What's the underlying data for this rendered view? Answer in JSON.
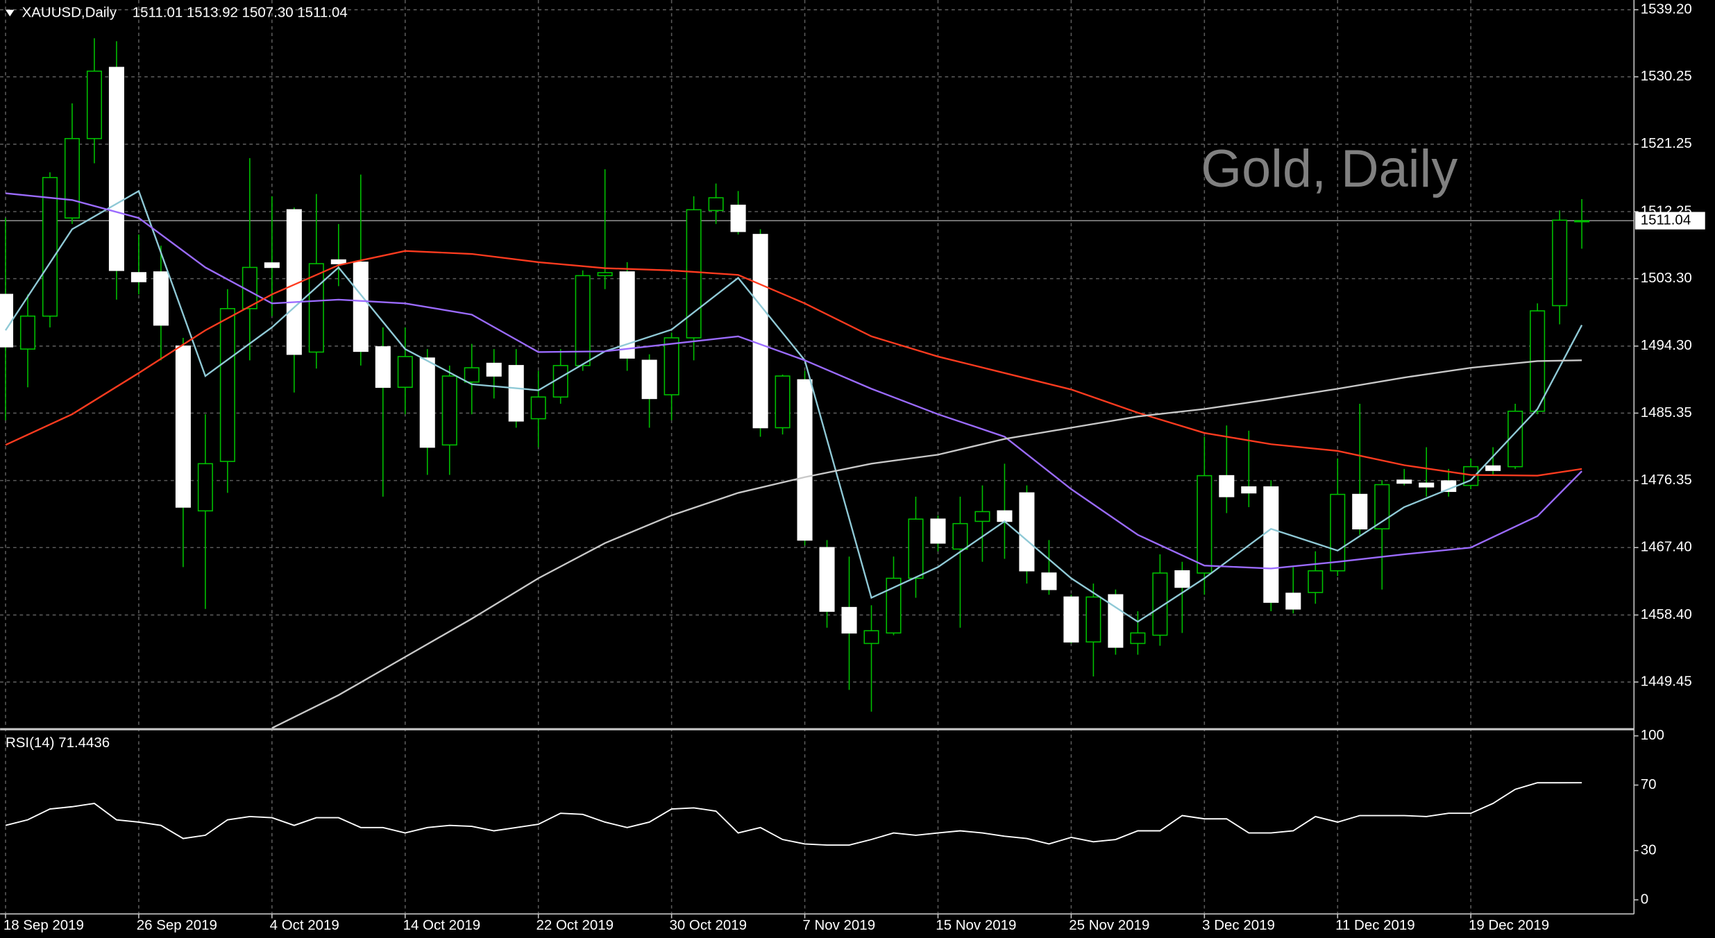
{
  "chart_data": {
    "type": "candlestick",
    "title": "XAUUSD,Daily",
    "ohlc_text": "1511.01 1513.92 1507.30 1511.04",
    "watermark": "Gold, Daily",
    "up_color": "#00c000",
    "down_color": "#ffffff",
    "wick_color": "#00c000",
    "grid": true,
    "ylim": [
      1443.3,
      1540.5
    ],
    "yticks": [
      {
        "value": 1539.2,
        "label": "1539.20"
      },
      {
        "value": 1530.25,
        "label": "1530.25"
      },
      {
        "value": 1521.25,
        "label": "1521.25"
      },
      {
        "value": 1512.25,
        "label": "1512.25"
      },
      {
        "value": 1503.3,
        "label": "1503.30"
      },
      {
        "value": 1494.3,
        "label": "1494.30"
      },
      {
        "value": 1485.35,
        "label": "1485.35"
      },
      {
        "value": 1476.35,
        "label": "1476.35"
      },
      {
        "value": 1467.4,
        "label": "1467.40"
      },
      {
        "value": 1458.4,
        "label": "1458.40"
      },
      {
        "value": 1449.45,
        "label": "1449.45"
      }
    ],
    "xticks": [
      {
        "value": 0,
        "label": "18 Sep 2019"
      },
      {
        "value": 6,
        "label": "26 Sep 2019"
      },
      {
        "value": 12,
        "label": "4 Oct 2019"
      },
      {
        "value": 18,
        "label": "14 Oct 2019"
      },
      {
        "value": 24,
        "label": "22 Oct 2019"
      },
      {
        "value": 30,
        "label": "30 Oct 2019"
      },
      {
        "value": 36,
        "label": "7 Nov 2019"
      },
      {
        "value": 42,
        "label": "15 Nov 2019"
      },
      {
        "value": 48,
        "label": "25 Nov 2019"
      },
      {
        "value": 54,
        "label": "3 Dec 2019"
      },
      {
        "value": 60,
        "label": "11 Dec 2019"
      },
      {
        "value": 66,
        "label": "19 Dec 2019"
      }
    ],
    "last_price": {
      "value": 1511.04,
      "label": "1511.04"
    },
    "ohlc": [
      [
        1501.2,
        1511.4,
        1484.4,
        1494.2
      ],
      [
        1493.9,
        1501.2,
        1488.8,
        1498.3
      ],
      [
        1498.3,
        1517.5,
        1496.8,
        1516.8
      ],
      [
        1511.4,
        1526.7,
        1510.6,
        1522.0
      ],
      [
        1522.0,
        1535.4,
        1518.7,
        1531.0
      ],
      [
        1531.5,
        1535.0,
        1500.5,
        1504.4
      ],
      [
        1504.1,
        1509.2,
        1501.2,
        1502.9
      ],
      [
        1504.2,
        1507.7,
        1492.4,
        1497.1
      ],
      [
        1494.3,
        1495.4,
        1464.8,
        1472.8
      ],
      [
        1472.3,
        1485.2,
        1459.2,
        1478.6
      ],
      [
        1478.9,
        1501.9,
        1474.7,
        1499.3
      ],
      [
        1499.3,
        1519.4,
        1492.4,
        1504.8
      ],
      [
        1505.4,
        1514.3,
        1498.3,
        1504.8
      ],
      [
        1512.5,
        1512.8,
        1488.1,
        1493.2
      ],
      [
        1493.5,
        1514.6,
        1491.3,
        1505.3
      ],
      [
        1505.8,
        1510.6,
        1502.3,
        1505.3
      ],
      [
        1505.5,
        1517.2,
        1491.7,
        1493.6
      ],
      [
        1494.2,
        1496.8,
        1474.2,
        1488.8
      ],
      [
        1488.8,
        1496.8,
        1485.2,
        1492.9
      ],
      [
        1492.7,
        1493.9,
        1477.1,
        1480.8
      ],
      [
        1481.1,
        1491.7,
        1477.1,
        1490.3
      ],
      [
        1489.5,
        1494.6,
        1485.2,
        1491.4
      ],
      [
        1492.0,
        1493.9,
        1487.3,
        1490.3
      ],
      [
        1491.7,
        1493.9,
        1483.4,
        1484.3
      ],
      [
        1484.6,
        1491.0,
        1480.8,
        1487.5
      ],
      [
        1487.5,
        1493.9,
        1486.6,
        1491.7
      ],
      [
        1491.7,
        1504.4,
        1491.0,
        1503.7
      ],
      [
        1503.7,
        1517.9,
        1501.9,
        1504.1
      ],
      [
        1504.2,
        1505.5,
        1491.0,
        1492.7
      ],
      [
        1492.4,
        1493.2,
        1483.4,
        1487.3
      ],
      [
        1487.8,
        1496.1,
        1484.4,
        1495.4
      ],
      [
        1495.4,
        1514.3,
        1492.4,
        1512.5
      ],
      [
        1512.4,
        1516.0,
        1510.6,
        1514.1
      ],
      [
        1513.1,
        1515.0,
        1509.2,
        1509.6
      ],
      [
        1509.2,
        1509.9,
        1482.2,
        1483.4
      ],
      [
        1483.4,
        1490.5,
        1482.5,
        1490.3
      ],
      [
        1489.8,
        1491.0,
        1467.7,
        1468.4
      ],
      [
        1467.4,
        1468.4,
        1456.7,
        1458.9
      ],
      [
        1459.4,
        1466.2,
        1448.4,
        1456.0
      ],
      [
        1454.6,
        1459.7,
        1445.5,
        1456.3
      ],
      [
        1456.0,
        1466.2,
        1455.7,
        1463.3
      ],
      [
        1463.3,
        1474.2,
        1460.7,
        1471.2
      ],
      [
        1471.2,
        1471.7,
        1466.9,
        1468.0
      ],
      [
        1467.2,
        1474.2,
        1456.7,
        1470.6
      ],
      [
        1470.9,
        1475.7,
        1465.5,
        1472.2
      ],
      [
        1472.3,
        1478.6,
        1465.9,
        1470.9
      ],
      [
        1474.7,
        1475.7,
        1462.6,
        1464.3
      ],
      [
        1464.0,
        1468.4,
        1461.1,
        1461.8
      ],
      [
        1460.8,
        1461.1,
        1454.6,
        1454.8
      ],
      [
        1454.8,
        1462.6,
        1450.2,
        1460.8
      ],
      [
        1461.1,
        1461.8,
        1453.1,
        1454.1
      ],
      [
        1454.6,
        1458.9,
        1453.1,
        1456.0
      ],
      [
        1455.7,
        1466.5,
        1454.3,
        1464.0
      ],
      [
        1464.3,
        1465.5,
        1456.0,
        1462.1
      ],
      [
        1464.0,
        1482.2,
        1461.1,
        1477.0
      ],
      [
        1477.0,
        1483.7,
        1472.0,
        1474.2
      ],
      [
        1475.5,
        1483.0,
        1472.8,
        1474.7
      ],
      [
        1475.5,
        1476.4,
        1458.9,
        1460.1
      ],
      [
        1461.3,
        1464.8,
        1458.6,
        1459.2
      ],
      [
        1461.4,
        1466.9,
        1459.9,
        1464.3
      ],
      [
        1464.3,
        1479.3,
        1463.6,
        1474.5
      ],
      [
        1474.5,
        1486.6,
        1469.1,
        1469.9
      ],
      [
        1469.9,
        1476.4,
        1461.8,
        1475.8
      ],
      [
        1476.4,
        1477.9,
        1475.7,
        1476.0
      ],
      [
        1476.0,
        1480.8,
        1474.2,
        1475.5
      ],
      [
        1476.3,
        1477.9,
        1474.2,
        1474.9
      ],
      [
        1475.7,
        1479.3,
        1475.2,
        1478.2
      ],
      [
        1478.3,
        1480.8,
        1477.1,
        1477.7
      ],
      [
        1478.2,
        1486.6,
        1477.9,
        1485.6
      ],
      [
        1485.6,
        1500.0,
        1485.2,
        1499.0
      ],
      [
        1499.7,
        1512.4,
        1497.2,
        1511.1
      ],
      [
        1511.01,
        1513.92,
        1507.3,
        1511.04
      ]
    ],
    "series": [
      {
        "color": "#8fc9d6",
        "x": [
          0,
          3,
          6,
          9,
          12,
          15,
          18,
          21,
          24,
          27,
          30,
          33,
          36,
          39,
          42,
          45,
          48,
          51,
          54,
          57,
          60,
          63,
          66,
          69,
          71
        ],
        "values": [
          1496.4,
          1509.9,
          1515.0,
          1490.3,
          1496.8,
          1504.8,
          1493.9,
          1489.2,
          1488.4,
          1493.6,
          1496.5,
          1503.4,
          1492.4,
          1460.7,
          1464.8,
          1470.9,
          1463.3,
          1457.5,
          1463.3,
          1469.9,
          1467.0,
          1472.8,
          1476.4,
          1485.9,
          1497.1
        ]
      },
      {
        "color": "#9b6bff",
        "x": [
          0,
          3,
          6,
          9,
          12,
          15,
          18,
          21,
          24,
          27,
          30,
          33,
          36,
          39,
          42,
          45,
          48,
          51,
          54,
          57,
          60,
          63,
          66,
          69,
          71
        ],
        "values": [
          1514.7,
          1513.8,
          1511.4,
          1504.8,
          1500.0,
          1500.5,
          1500.0,
          1498.5,
          1493.5,
          1493.6,
          1494.6,
          1495.6,
          1492.4,
          1488.6,
          1485.2,
          1482.2,
          1475.2,
          1469.1,
          1465.0,
          1464.6,
          1465.5,
          1466.5,
          1467.4,
          1471.6,
          1477.6
        ]
      },
      {
        "color": "#ff3b1f",
        "x": [
          0,
          3,
          6,
          9,
          12,
          15,
          18,
          21,
          24,
          27,
          30,
          33,
          36,
          39,
          42,
          45,
          48,
          51,
          54,
          57,
          60,
          63,
          66,
          69,
          71
        ],
        "values": [
          1481.1,
          1485.2,
          1490.7,
          1496.4,
          1501.2,
          1505.1,
          1507.0,
          1506.6,
          1505.5,
          1504.7,
          1504.4,
          1503.8,
          1500.0,
          1495.6,
          1492.9,
          1490.7,
          1488.5,
          1485.4,
          1482.7,
          1481.2,
          1480.3,
          1478.4,
          1477.1,
          1477.0,
          1477.9
        ]
      },
      {
        "color": "#c8c8c8",
        "x": [
          12,
          15,
          18,
          21,
          24,
          27,
          30,
          33,
          36,
          39,
          42,
          45,
          48,
          51,
          54,
          57,
          60,
          63,
          66,
          69,
          71
        ],
        "values": [
          1443.3,
          1447.7,
          1452.8,
          1457.9,
          1463.3,
          1468.0,
          1471.7,
          1474.7,
          1476.8,
          1478.6,
          1479.8,
          1481.9,
          1483.4,
          1484.9,
          1485.9,
          1487.2,
          1488.6,
          1490.1,
          1491.4,
          1492.3,
          1492.4
        ]
      }
    ],
    "rsi": {
      "label": "RSI(14) 71.4436",
      "color": "#ffffff",
      "ylim": [
        -8.6,
        103.4
      ],
      "yticks": [
        100,
        70,
        30,
        0
      ],
      "values": [
        45.4,
        48.8,
        55.4,
        56.8,
        58.8,
        48.8,
        47.4,
        45.4,
        37.4,
        39.4,
        48.8,
        50.8,
        50.1,
        45.4,
        50.1,
        50.1,
        44.1,
        44.1,
        40.8,
        44.1,
        45.4,
        44.8,
        42.1,
        44.1,
        46.1,
        52.8,
        52.1,
        47.4,
        44.1,
        47.4,
        55.4,
        56.1,
        54.1,
        40.8,
        44.1,
        36.8,
        34.1,
        33.4,
        33.4,
        36.8,
        40.8,
        39.4,
        40.8,
        42.1,
        40.8,
        38.8,
        37.4,
        34.1,
        38.1,
        35.4,
        36.8,
        42.1,
        42.1,
        51.4,
        49.4,
        49.4,
        40.8,
        40.8,
        42.1,
        50.8,
        47.4,
        51.4,
        51.4,
        51.4,
        50.8,
        52.8,
        52.8,
        58.8,
        67.4,
        71.4,
        71.4,
        71.4436
      ]
    }
  }
}
